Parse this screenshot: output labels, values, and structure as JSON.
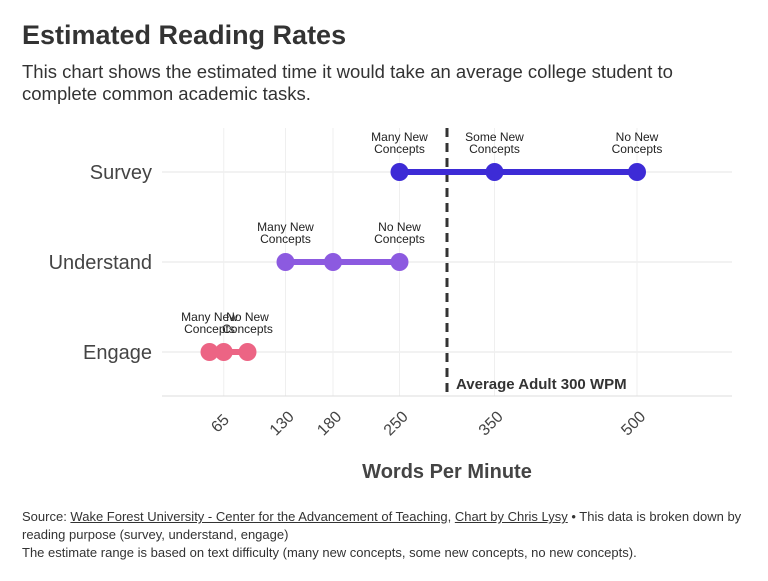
{
  "title": "Estimated Reading Rates",
  "subtitle": "This chart shows the estimated time it would take an average college student to complete common academic tasks.",
  "chart_data": {
    "type": "dot-range",
    "xlabel": "Words Per Minute",
    "xlim": [
      0,
      600
    ],
    "x_ticks": [
      65,
      130,
      180,
      250,
      350,
      500
    ],
    "categories": [
      "Survey",
      "Understand",
      "Engage"
    ],
    "series": [
      {
        "category": "Survey",
        "color": "#3d2bd6",
        "points": [
          {
            "x": 250,
            "label": [
              "Many New",
              "Concepts"
            ]
          },
          {
            "x": 350,
            "label": [
              "Some New",
              "Concepts"
            ]
          },
          {
            "x": 500,
            "label": [
              "No New",
              "Concepts"
            ]
          }
        ]
      },
      {
        "category": "Understand",
        "color": "#8c5ae0",
        "points": [
          {
            "x": 130,
            "label": [
              "Many New",
              "Concepts"
            ]
          },
          {
            "x": 180,
            "label": null
          },
          {
            "x": 250,
            "label": [
              "No New",
              "Concepts"
            ]
          }
        ]
      },
      {
        "category": "Engage",
        "color": "#ec6484",
        "points": [
          {
            "x": 50,
            "label": [
              "Many New",
              "Concepts"
            ]
          },
          {
            "x": 65,
            "label": null
          },
          {
            "x": 90,
            "label": [
              "No New",
              "Concepts"
            ]
          }
        ]
      }
    ],
    "reference_line": {
      "x": 300,
      "label": "Average Adult 300 WPM"
    }
  },
  "footer": {
    "source_prefix": "Source: ",
    "source_link": "Wake Forest University - Center for the Advancement of Teaching",
    "separator": ", ",
    "chart_link": "Chart by Chris Lysy",
    "note1": " • This data is broken down by reading purpose (survey, understand, engage)",
    "note2": "The estimate range is based on text difficulty (many new concepts, some new concepts, no new concepts)."
  }
}
